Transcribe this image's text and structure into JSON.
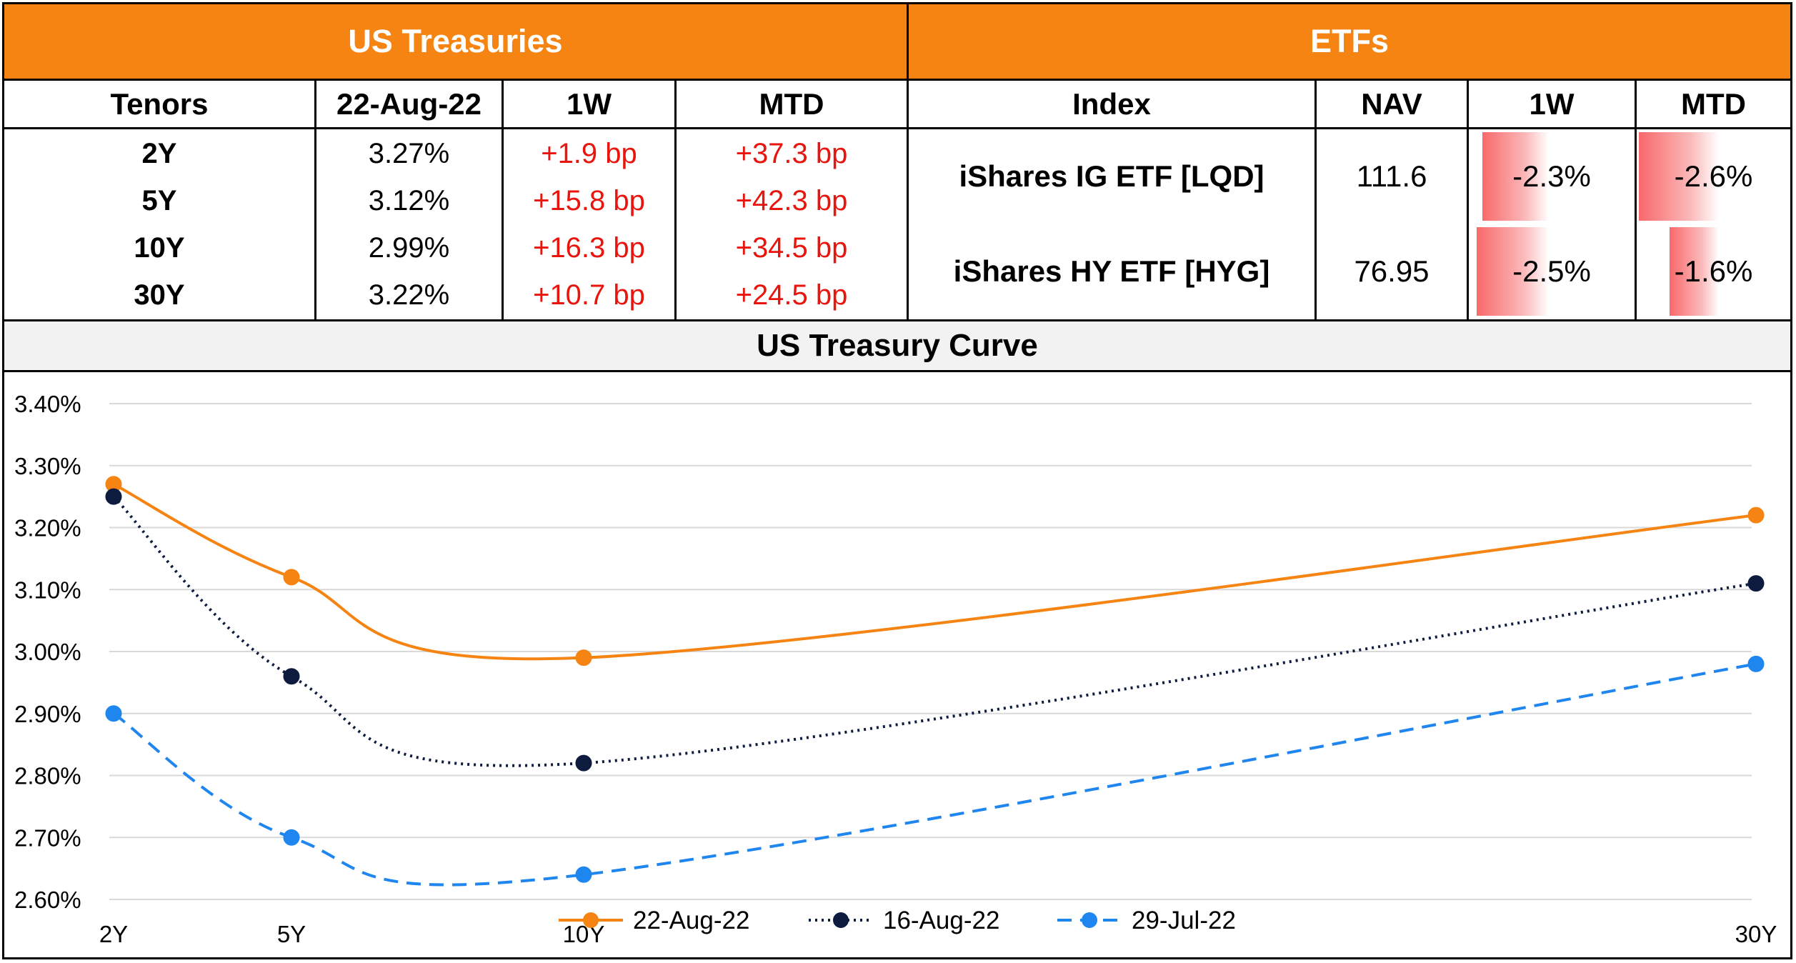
{
  "treasuries": {
    "title": "US Treasuries",
    "headers": [
      "Tenors",
      "22-Aug-22",
      "1W",
      "MTD"
    ],
    "rows": [
      {
        "tenor": "2Y",
        "yield": "3.27%",
        "w1": "+1.9 bp",
        "mtd": "+37.3 bp"
      },
      {
        "tenor": "5Y",
        "yield": "3.12%",
        "w1": "+15.8 bp",
        "mtd": "+42.3 bp"
      },
      {
        "tenor": "10Y",
        "yield": "2.99%",
        "w1": "+16.3 bp",
        "mtd": "+34.5 bp"
      },
      {
        "tenor": "30Y",
        "yield": "3.22%",
        "w1": "+10.7 bp",
        "mtd": "+24.5 bp"
      }
    ]
  },
  "etfs": {
    "title": "ETFs",
    "headers": [
      "Index",
      "NAV",
      "1W",
      "MTD"
    ],
    "rows": [
      {
        "index": "iShares IG ETF [LQD]",
        "nav": "111.6",
        "w1": "-2.3%",
        "mtd": "-2.6%",
        "w1_value": -2.3,
        "mtd_value": -2.6
      },
      {
        "index": "iShares HY ETF [HYG]",
        "nav": "76.95",
        "w1": "-2.5%",
        "mtd": "-1.6%",
        "w1_value": -2.5,
        "mtd_value": -1.6
      }
    ],
    "bar_color": "#F8696B"
  },
  "colors": {
    "header_bg": "#F58413",
    "header_text": "#FFFFFF",
    "positive_change": "#E8150E"
  },
  "chart_data": {
    "type": "line",
    "title": "US Treasury Curve",
    "x": [
      2,
      5,
      10,
      30
    ],
    "x_tick_labels": [
      "2Y",
      "5Y",
      "10Y",
      "30Y"
    ],
    "y_ticks": [
      2.6,
      2.7,
      2.8,
      2.9,
      3.0,
      3.1,
      3.2,
      3.3,
      3.4
    ],
    "y_tick_labels": [
      "2.60%",
      "2.70%",
      "2.80%",
      "2.90%",
      "3.00%",
      "3.10%",
      "3.20%",
      "3.30%",
      "3.40%"
    ],
    "ylim": [
      2.6,
      3.4
    ],
    "grid": true,
    "legend_position": "bottom",
    "smooth": true,
    "series": [
      {
        "name": "22-Aug-22",
        "values": [
          3.27,
          3.12,
          2.99,
          3.22
        ],
        "color": "#F58413",
        "dash": "solid",
        "marker": "circle"
      },
      {
        "name": "16-Aug-22",
        "values": [
          3.25,
          2.96,
          2.82,
          3.11
        ],
        "color": "#0D1B3E",
        "dash": "dotted",
        "marker": "circle"
      },
      {
        "name": "29-Jul-22",
        "values": [
          2.9,
          2.7,
          2.64,
          2.98
        ],
        "color": "#1F86F0",
        "dash": "dashed",
        "marker": "circle"
      }
    ]
  }
}
